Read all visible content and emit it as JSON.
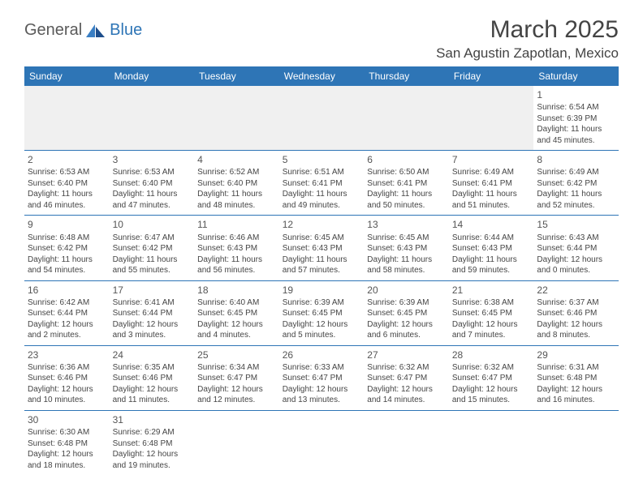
{
  "logo": {
    "text1": "General",
    "text2": "Blue"
  },
  "title": "March 2025",
  "location": "San Agustin Zapotlan, Mexico",
  "colors": {
    "header_bg": "#2e75b6",
    "header_text": "#ffffff",
    "blank_bg": "#f0f0f0",
    "rule": "#2e75b6",
    "text": "#454545",
    "title_color": "#444444"
  },
  "day_headers": [
    "Sunday",
    "Monday",
    "Tuesday",
    "Wednesday",
    "Thursday",
    "Friday",
    "Saturday"
  ],
  "weeks": [
    [
      null,
      null,
      null,
      null,
      null,
      null,
      {
        "d": "1",
        "sr": "Sunrise: 6:54 AM",
        "ss": "Sunset: 6:39 PM",
        "dl": "Daylight: 11 hours and 45 minutes."
      }
    ],
    [
      {
        "d": "2",
        "sr": "Sunrise: 6:53 AM",
        "ss": "Sunset: 6:40 PM",
        "dl": "Daylight: 11 hours and 46 minutes."
      },
      {
        "d": "3",
        "sr": "Sunrise: 6:53 AM",
        "ss": "Sunset: 6:40 PM",
        "dl": "Daylight: 11 hours and 47 minutes."
      },
      {
        "d": "4",
        "sr": "Sunrise: 6:52 AM",
        "ss": "Sunset: 6:40 PM",
        "dl": "Daylight: 11 hours and 48 minutes."
      },
      {
        "d": "5",
        "sr": "Sunrise: 6:51 AM",
        "ss": "Sunset: 6:41 PM",
        "dl": "Daylight: 11 hours and 49 minutes."
      },
      {
        "d": "6",
        "sr": "Sunrise: 6:50 AM",
        "ss": "Sunset: 6:41 PM",
        "dl": "Daylight: 11 hours and 50 minutes."
      },
      {
        "d": "7",
        "sr": "Sunrise: 6:49 AM",
        "ss": "Sunset: 6:41 PM",
        "dl": "Daylight: 11 hours and 51 minutes."
      },
      {
        "d": "8",
        "sr": "Sunrise: 6:49 AM",
        "ss": "Sunset: 6:42 PM",
        "dl": "Daylight: 11 hours and 52 minutes."
      }
    ],
    [
      {
        "d": "9",
        "sr": "Sunrise: 6:48 AM",
        "ss": "Sunset: 6:42 PM",
        "dl": "Daylight: 11 hours and 54 minutes."
      },
      {
        "d": "10",
        "sr": "Sunrise: 6:47 AM",
        "ss": "Sunset: 6:42 PM",
        "dl": "Daylight: 11 hours and 55 minutes."
      },
      {
        "d": "11",
        "sr": "Sunrise: 6:46 AM",
        "ss": "Sunset: 6:43 PM",
        "dl": "Daylight: 11 hours and 56 minutes."
      },
      {
        "d": "12",
        "sr": "Sunrise: 6:45 AM",
        "ss": "Sunset: 6:43 PM",
        "dl": "Daylight: 11 hours and 57 minutes."
      },
      {
        "d": "13",
        "sr": "Sunrise: 6:45 AM",
        "ss": "Sunset: 6:43 PM",
        "dl": "Daylight: 11 hours and 58 minutes."
      },
      {
        "d": "14",
        "sr": "Sunrise: 6:44 AM",
        "ss": "Sunset: 6:43 PM",
        "dl": "Daylight: 11 hours and 59 minutes."
      },
      {
        "d": "15",
        "sr": "Sunrise: 6:43 AM",
        "ss": "Sunset: 6:44 PM",
        "dl": "Daylight: 12 hours and 0 minutes."
      }
    ],
    [
      {
        "d": "16",
        "sr": "Sunrise: 6:42 AM",
        "ss": "Sunset: 6:44 PM",
        "dl": "Daylight: 12 hours and 2 minutes."
      },
      {
        "d": "17",
        "sr": "Sunrise: 6:41 AM",
        "ss": "Sunset: 6:44 PM",
        "dl": "Daylight: 12 hours and 3 minutes."
      },
      {
        "d": "18",
        "sr": "Sunrise: 6:40 AM",
        "ss": "Sunset: 6:45 PM",
        "dl": "Daylight: 12 hours and 4 minutes."
      },
      {
        "d": "19",
        "sr": "Sunrise: 6:39 AM",
        "ss": "Sunset: 6:45 PM",
        "dl": "Daylight: 12 hours and 5 minutes."
      },
      {
        "d": "20",
        "sr": "Sunrise: 6:39 AM",
        "ss": "Sunset: 6:45 PM",
        "dl": "Daylight: 12 hours and 6 minutes."
      },
      {
        "d": "21",
        "sr": "Sunrise: 6:38 AM",
        "ss": "Sunset: 6:45 PM",
        "dl": "Daylight: 12 hours and 7 minutes."
      },
      {
        "d": "22",
        "sr": "Sunrise: 6:37 AM",
        "ss": "Sunset: 6:46 PM",
        "dl": "Daylight: 12 hours and 8 minutes."
      }
    ],
    [
      {
        "d": "23",
        "sr": "Sunrise: 6:36 AM",
        "ss": "Sunset: 6:46 PM",
        "dl": "Daylight: 12 hours and 10 minutes."
      },
      {
        "d": "24",
        "sr": "Sunrise: 6:35 AM",
        "ss": "Sunset: 6:46 PM",
        "dl": "Daylight: 12 hours and 11 minutes."
      },
      {
        "d": "25",
        "sr": "Sunrise: 6:34 AM",
        "ss": "Sunset: 6:47 PM",
        "dl": "Daylight: 12 hours and 12 minutes."
      },
      {
        "d": "26",
        "sr": "Sunrise: 6:33 AM",
        "ss": "Sunset: 6:47 PM",
        "dl": "Daylight: 12 hours and 13 minutes."
      },
      {
        "d": "27",
        "sr": "Sunrise: 6:32 AM",
        "ss": "Sunset: 6:47 PM",
        "dl": "Daylight: 12 hours and 14 minutes."
      },
      {
        "d": "28",
        "sr": "Sunrise: 6:32 AM",
        "ss": "Sunset: 6:47 PM",
        "dl": "Daylight: 12 hours and 15 minutes."
      },
      {
        "d": "29",
        "sr": "Sunrise: 6:31 AM",
        "ss": "Sunset: 6:48 PM",
        "dl": "Daylight: 12 hours and 16 minutes."
      }
    ],
    [
      {
        "d": "30",
        "sr": "Sunrise: 6:30 AM",
        "ss": "Sunset: 6:48 PM",
        "dl": "Daylight: 12 hours and 18 minutes."
      },
      {
        "d": "31",
        "sr": "Sunrise: 6:29 AM",
        "ss": "Sunset: 6:48 PM",
        "dl": "Daylight: 12 hours and 19 minutes."
      },
      null,
      null,
      null,
      null,
      null
    ]
  ]
}
